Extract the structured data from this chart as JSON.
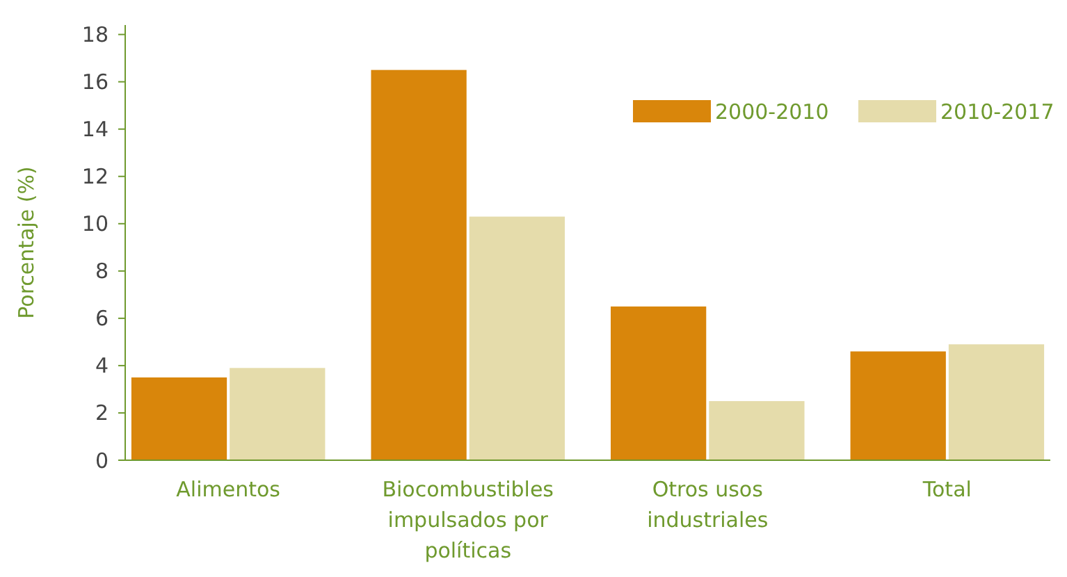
{
  "chart_data": {
    "type": "bar",
    "ylabel": "Porcentaje (%)",
    "categories": [
      "Alimentos",
      "Biocombustibles impulsados por políticas",
      "Otros usos industriales",
      "Total"
    ],
    "series": [
      {
        "name": "2000-2010",
        "color": "#d9860b",
        "values": [
          3.5,
          16.5,
          6.5,
          4.6
        ]
      },
      {
        "name": "2010-2017",
        "color": "#e5dcab",
        "values": [
          3.9,
          10.3,
          2.5,
          4.9
        ]
      }
    ],
    "ylim": [
      0,
      18.4
    ],
    "yticks": [
      0,
      2,
      4,
      6,
      8,
      10,
      12,
      14,
      16,
      18
    ],
    "grid": false,
    "legend": "top right"
  }
}
